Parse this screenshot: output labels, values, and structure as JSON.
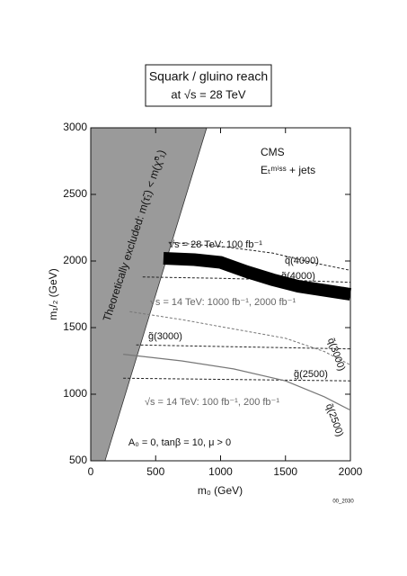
{
  "chart_data": {
    "type": "line",
    "title": "Squark / gluino reach",
    "subtitle": "at √s = 28 TeV",
    "x_label": "m₀ (GeV)",
    "y_label": "m₁/₂ (GeV)",
    "xlim": [
      0,
      2000
    ],
    "ylim": [
      500,
      3000
    ],
    "xticks": [
      0,
      500,
      1000,
      1500,
      2000
    ],
    "yticks": [
      500,
      1000,
      1500,
      2000,
      2500,
      3000
    ],
    "excluded": {
      "label": "Theoretically excluded: m(τ̃₁) < m(χ̃⁰₁)",
      "color": "#9a9a9a",
      "x": [
        110,
        893
      ],
      "y": [
        500,
        3000
      ]
    },
    "series": [
      {
        "name": "q̃(4000)",
        "color": "#222222",
        "dash": true,
        "width": 1,
        "x": [
          600,
          1000,
          1400,
          1700,
          2000
        ],
        "values": [
          2140,
          2110,
          2060,
          1990,
          1930
        ]
      },
      {
        "name": "g̃(4000)",
        "color": "#222222",
        "dash": true,
        "width": 1,
        "x": [
          400,
          1000,
          1400,
          1700,
          2000
        ],
        "values": [
          1880,
          1870,
          1860,
          1850,
          1840
        ]
      },
      {
        "name": null,
        "color": "#000000",
        "dash": false,
        "width": 14,
        "x": [
          560,
          800,
          1000,
          1200,
          1400,
          1600,
          1800,
          2000
        ],
        "values": [
          2020,
          2010,
          1990,
          1920,
          1860,
          1810,
          1780,
          1750
        ]
      },
      {
        "name": "g̃(3000)",
        "color": "#222222",
        "dash": true,
        "width": 1,
        "x": [
          350,
          2000
        ],
        "values": [
          1370,
          1340
        ]
      },
      {
        "name": "q̃(3000)",
        "color": "#777777",
        "dash": true,
        "width": 1,
        "x": [
          300,
          700,
          1100,
          1500,
          1800,
          2000
        ],
        "values": [
          1620,
          1560,
          1490,
          1420,
          1320,
          1220
        ]
      },
      {
        "name": "g̃(2500)",
        "color": "#222222",
        "dash": true,
        "width": 1,
        "x": [
          250,
          2000
        ],
        "values": [
          1120,
          1100
        ]
      },
      {
        "name": "q̃(2500)",
        "color": "#777777",
        "dash": false,
        "width": 1.2,
        "x": [
          250,
          700,
          1100,
          1500,
          1800,
          2000
        ],
        "values": [
          1300,
          1250,
          1190,
          1100,
          980,
          880
        ]
      }
    ],
    "annotations": [
      "CMS",
      "Eₜᵐⁱˢˢ + jets",
      "√s = 28 TeV: 100 fb⁻¹",
      "√s = 14 TeV: 1000 fb⁻¹, 2000 fb⁻¹",
      "√s = 14 TeV: 100 fb⁻¹, 200 fb⁻¹",
      "A₀ = 0, tanβ = 10, μ > 0",
      "00_2030"
    ]
  }
}
